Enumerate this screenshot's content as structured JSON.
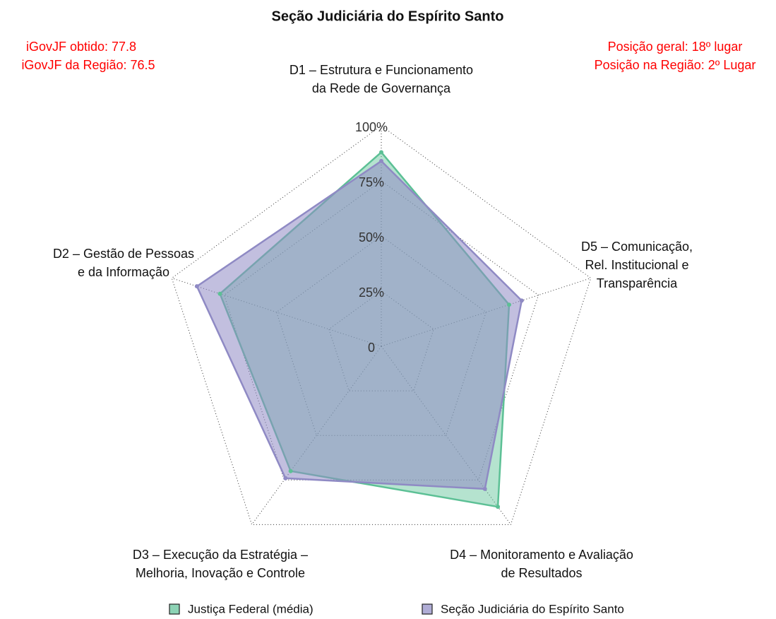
{
  "chart_data": {
    "type": "radar",
    "title": "Seção Judiciária do Espírito Santo",
    "annotations": [
      "iGovJF obtido: 77.8",
      "iGovJF da Região: 76.5",
      "Posição geral: 18º lugar",
      "Posição na Região: 2º Lugar"
    ],
    "categories": [
      [
        "D1 – Estrutura e Funcionamento",
        "da Rede de Governança"
      ],
      [
        "D2 – Gestão de Pessoas",
        "e da Informação"
      ],
      [
        "D3 – Execução da Estratégia –",
        "Melhoria, Inovação e Controle"
      ],
      [
        "D4 – Monitoramento e Avaliação",
        "de Resultados"
      ],
      [
        "D5 – Comunicação,",
        "Rel. Institucional e",
        "Transparência"
      ]
    ],
    "series": [
      {
        "name": "Justiça Federal (média)",
        "color": "#5cc095",
        "values": [
          88,
          77,
          70,
          90,
          61
        ]
      },
      {
        "name": "Seção Judiciária do Espírito Santo",
        "color": "#8f8ac4",
        "values": [
          84,
          88,
          74,
          80,
          67
        ]
      }
    ],
    "rlim": [
      0,
      100
    ],
    "rticks": [
      0,
      {
        "value": 25,
        "label": "25%"
      },
      {
        "value": 50,
        "label": "50%"
      },
      {
        "value": 75,
        "label": "75%"
      },
      {
        "value": 100,
        "label": "100%"
      }
    ],
    "grid": true,
    "legend": "bottom"
  }
}
